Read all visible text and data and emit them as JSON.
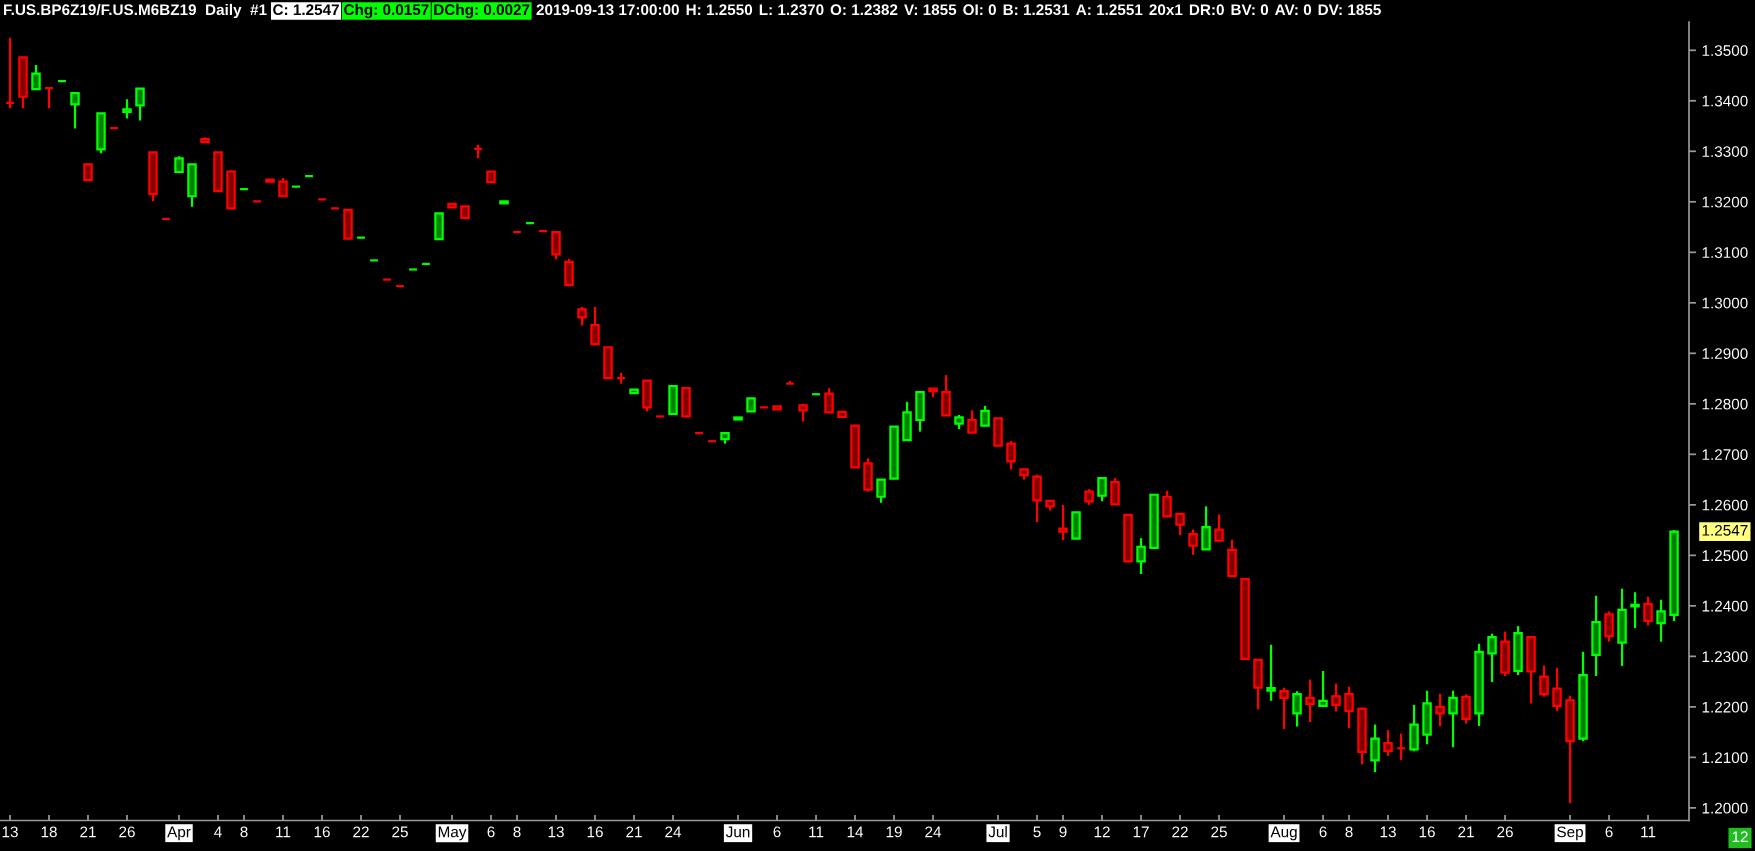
{
  "chart_data": {
    "type": "candlestick",
    "title": "F.US.BP6Z19/F.US.M6BZ19  Daily  #1",
    "annotations": [
      "C: 1.2547",
      "Chg: 0.0157",
      "DChg: 0.0027",
      "2019-09-13 17:00:00",
      "H: 1.2550",
      "L: 1.2370",
      "O: 1.2382",
      "V: 1855",
      "OI: 0",
      "B: 1.2531",
      "A: 1.2551",
      "20x1",
      "DR:0",
      "BV: 0",
      "AV: 0",
      "DV: 1855",
      "1.2547",
      "12"
    ],
    "categories": [
      "13",
      null,
      null,
      "18",
      null,
      null,
      "21",
      null,
      null,
      "26",
      null,
      null,
      null,
      "Apr",
      null,
      null,
      "4",
      null,
      "8",
      null,
      null,
      "11",
      null,
      null,
      "16",
      null,
      null,
      "22",
      null,
      null,
      "25",
      null,
      null,
      null,
      "May",
      null,
      null,
      "6",
      null,
      "8",
      null,
      null,
      "13",
      null,
      null,
      "16",
      null,
      null,
      "21",
      null,
      null,
      "24",
      null,
      null,
      null,
      null,
      "Jun",
      null,
      null,
      "6",
      null,
      null,
      "11",
      null,
      null,
      "14",
      null,
      null,
      "19",
      null,
      null,
      "24",
      null,
      null,
      null,
      null,
      "Jul",
      null,
      null,
      "5",
      null,
      "9",
      null,
      null,
      "12",
      null,
      null,
      "17",
      null,
      null,
      "22",
      null,
      null,
      "25",
      null,
      null,
      null,
      null,
      "Aug",
      null,
      null,
      "6",
      null,
      "8",
      null,
      null,
      "13",
      null,
      null,
      "16",
      null,
      null,
      "21",
      null,
      null,
      "26",
      null,
      null,
      null,
      null,
      "Sep",
      null,
      null,
      "6",
      null,
      null,
      "11",
      null,
      null
    ],
    "ohlc": [
      [
        1.3396,
        1.3525,
        1.3385,
        1.3396
      ],
      [
        1.3486,
        1.3486,
        1.3385,
        1.3408
      ],
      [
        1.3423,
        1.3471,
        1.3423,
        1.3454
      ],
      [
        1.3425,
        1.3425,
        1.3385,
        1.3425
      ],
      [
        1.3439,
        1.3439,
        1.3439,
        1.3439
      ],
      [
        1.3393,
        1.3415,
        1.3345,
        1.3415
      ],
      [
        1.3274,
        1.3274,
        1.3243,
        1.3243
      ],
      [
        1.3304,
        1.3375,
        1.3296,
        1.3375
      ],
      [
        1.3346,
        1.3346,
        1.3346,
        1.3346
      ],
      [
        1.3378,
        1.3403,
        1.3365,
        1.3383
      ],
      [
        1.3391,
        1.3424,
        1.3361,
        1.3424
      ],
      [
        1.3298,
        1.3298,
        1.3201,
        1.3215
      ],
      [
        1.3166,
        1.3166,
        1.3166,
        1.3166
      ],
      [
        1.3259,
        1.329,
        1.3259,
        1.3286
      ],
      [
        1.3211,
        1.3274,
        1.319,
        1.3274
      ],
      [
        1.3324,
        1.3328,
        1.3318,
        1.3318
      ],
      [
        1.3298,
        1.3298,
        1.3221,
        1.3221
      ],
      [
        1.326,
        1.3262,
        1.3187,
        1.3187
      ],
      [
        1.3225,
        1.3225,
        1.3225,
        1.3225
      ],
      [
        1.3201,
        1.3201,
        1.3201,
        1.3201
      ],
      [
        1.3244,
        1.3244,
        1.324,
        1.324
      ],
      [
        1.324,
        1.3247,
        1.3211,
        1.3211
      ],
      [
        1.323,
        1.323,
        1.323,
        1.323
      ],
      [
        1.3251,
        1.3251,
        1.3251,
        1.3251
      ],
      [
        1.3205,
        1.3205,
        1.3205,
        1.3205
      ],
      [
        1.3187,
        1.3187,
        1.3187,
        1.3187
      ],
      [
        1.3184,
        1.3184,
        1.3127,
        1.3127
      ],
      [
        1.3129,
        1.3129,
        1.3129,
        1.3129
      ],
      [
        1.3084,
        1.3084,
        1.3084,
        1.3084
      ],
      [
        1.3046,
        1.3046,
        1.3046,
        1.3046
      ],
      [
        1.3033,
        1.3033,
        1.3033,
        1.3033
      ],
      [
        1.3066,
        1.3066,
        1.3066,
        1.3066
      ],
      [
        1.3077,
        1.3077,
        1.3077,
        1.3077
      ],
      [
        1.3126,
        1.3177,
        1.3126,
        1.3177
      ],
      [
        1.3196,
        1.3196,
        1.3189,
        1.3189
      ],
      [
        1.3191,
        1.3191,
        1.3168,
        1.3168
      ],
      [
        1.3305,
        1.3313,
        1.3286,
        1.3305
      ],
      [
        1.326,
        1.326,
        1.3239,
        1.3239
      ],
      [
        1.3197,
        1.3201,
        1.3197,
        1.3201
      ],
      [
        1.314,
        1.314,
        1.314,
        1.314
      ],
      [
        1.3158,
        1.3158,
        1.3158,
        1.3158
      ],
      [
        1.3142,
        1.3142,
        1.3142,
        1.3142
      ],
      [
        1.314,
        1.314,
        1.3086,
        1.3096
      ],
      [
        1.3081,
        1.3087,
        1.3035,
        1.3035
      ],
      [
        1.2987,
        1.2992,
        1.2955,
        1.2971
      ],
      [
        1.2956,
        1.2992,
        1.2918,
        1.2918
      ],
      [
        1.2912,
        1.2912,
        1.2851,
        1.2851
      ],
      [
        1.2851,
        1.2861,
        1.284,
        1.2851
      ],
      [
        1.2821,
        1.2828,
        1.2821,
        1.2828
      ],
      [
        1.2846,
        1.2846,
        1.2785,
        1.2793
      ],
      [
        1.2775,
        1.2775,
        1.2775,
        1.2775
      ],
      [
        1.278,
        1.2835,
        1.278,
        1.2835
      ],
      [
        1.2831,
        1.2832,
        1.2775,
        1.2775
      ],
      [
        1.2742,
        1.2742,
        1.2742,
        1.2742
      ],
      [
        1.2726,
        1.2726,
        1.2726,
        1.2726
      ],
      [
        1.273,
        1.2742,
        1.2721,
        1.2742
      ],
      [
        1.2769,
        1.2773,
        1.2769,
        1.2773
      ],
      [
        1.2785,
        1.2811,
        1.2785,
        1.2811
      ],
      [
        1.2793,
        1.2793,
        1.2793,
        1.2793
      ],
      [
        1.2795,
        1.2795,
        1.2789,
        1.2789
      ],
      [
        1.284,
        1.2845,
        1.284,
        1.284
      ],
      [
        1.2797,
        1.28,
        1.2765,
        1.2787
      ],
      [
        1.2819,
        1.282,
        1.2819,
        1.2819
      ],
      [
        1.282,
        1.2831,
        1.2783,
        1.2783
      ],
      [
        1.2784,
        1.2784,
        1.2774,
        1.2774
      ],
      [
        1.2757,
        1.2757,
        1.2674,
        1.2674
      ],
      [
        1.2682,
        1.2692,
        1.2626,
        1.263
      ],
      [
        1.2616,
        1.265,
        1.2604,
        1.265
      ],
      [
        1.2652,
        1.2755,
        1.2652,
        1.2755
      ],
      [
        1.2728,
        1.2804,
        1.2728,
        1.2783
      ],
      [
        1.2768,
        1.2823,
        1.2745,
        1.2823
      ],
      [
        1.283,
        1.283,
        1.2813,
        1.2825
      ],
      [
        1.2823,
        1.2857,
        1.2777,
        1.2777
      ],
      [
        1.2761,
        1.2778,
        1.275,
        1.2773
      ],
      [
        1.2768,
        1.2787,
        1.2743,
        1.2743
      ],
      [
        1.2757,
        1.2796,
        1.2757,
        1.2786
      ],
      [
        1.2771,
        1.2771,
        1.2717,
        1.2717
      ],
      [
        1.2721,
        1.2726,
        1.267,
        1.2686
      ],
      [
        1.267,
        1.267,
        1.265,
        1.2659
      ],
      [
        1.2656,
        1.266,
        1.2566,
        1.2609
      ],
      [
        1.2608,
        1.2608,
        1.2589,
        1.2597
      ],
      [
        1.2553,
        1.26,
        1.253,
        1.2547
      ],
      [
        1.2533,
        1.2585,
        1.2533,
        1.2585
      ],
      [
        1.2626,
        1.2631,
        1.26,
        1.2607
      ],
      [
        1.2618,
        1.2653,
        1.2607,
        1.2653
      ],
      [
        1.2645,
        1.2653,
        1.2601,
        1.2601
      ],
      [
        1.258,
        1.258,
        1.2488,
        1.2488
      ],
      [
        1.2488,
        1.2534,
        1.2463,
        1.2517
      ],
      [
        1.2515,
        1.262,
        1.2515,
        1.262
      ],
      [
        1.2616,
        1.2628,
        1.2577,
        1.2577
      ],
      [
        1.2582,
        1.2582,
        1.254,
        1.2561
      ],
      [
        1.2542,
        1.2551,
        1.2501,
        1.2519
      ],
      [
        1.2512,
        1.2597,
        1.2512,
        1.2556
      ],
      [
        1.2551,
        1.2581,
        1.2529,
        1.2529
      ],
      [
        1.2511,
        1.2531,
        1.2459,
        1.2459
      ],
      [
        1.2453,
        1.2453,
        1.2293,
        1.2295
      ],
      [
        1.2293,
        1.2293,
        1.2195,
        1.2238
      ],
      [
        1.2232,
        1.2323,
        1.2212,
        1.2237
      ],
      [
        1.2231,
        1.2238,
        1.2156,
        1.2218
      ],
      [
        1.2187,
        1.2231,
        1.2161,
        1.2225
      ],
      [
        1.2218,
        1.2254,
        1.217,
        1.2206
      ],
      [
        1.2202,
        1.2271,
        1.2202,
        1.2212
      ],
      [
        1.2221,
        1.2246,
        1.2191,
        1.2204
      ],
      [
        1.2225,
        1.224,
        1.2158,
        1.2192
      ],
      [
        1.2196,
        1.2199,
        1.2086,
        1.2111
      ],
      [
        1.2094,
        1.2165,
        1.2071,
        1.2137
      ],
      [
        1.2128,
        1.2154,
        1.2103,
        1.2113
      ],
      [
        1.2118,
        1.2147,
        1.2095,
        1.2118
      ],
      [
        1.2116,
        1.2204,
        1.2112,
        1.2165
      ],
      [
        1.2145,
        1.2232,
        1.2126,
        1.2207
      ],
      [
        1.22,
        1.2226,
        1.2162,
        1.2187
      ],
      [
        1.2187,
        1.2232,
        1.212,
        1.2218
      ],
      [
        1.222,
        1.2225,
        1.2167,
        1.2176
      ],
      [
        1.2187,
        1.2325,
        1.2162,
        1.2309
      ],
      [
        1.2306,
        1.2345,
        1.2249,
        1.2338
      ],
      [
        1.2329,
        1.2349,
        1.2261,
        1.2268
      ],
      [
        1.2271,
        1.236,
        1.2263,
        1.2346
      ],
      [
        1.2338,
        1.2338,
        1.2207,
        1.227
      ],
      [
        1.226,
        1.2282,
        1.222,
        1.2225
      ],
      [
        1.2236,
        1.2277,
        1.2192,
        1.2202
      ],
      [
        1.2213,
        1.2222,
        1.2009,
        1.2132
      ],
      [
        1.2137,
        1.2309,
        1.2132,
        1.2263
      ],
      [
        1.2303,
        1.242,
        1.2261,
        1.2368
      ],
      [
        1.2383,
        1.2389,
        1.2329,
        1.234
      ],
      [
        1.2327,
        1.2434,
        1.2281,
        1.2392
      ],
      [
        1.2399,
        1.2427,
        1.2356,
        1.2402
      ],
      [
        1.2404,
        1.2418,
        1.2361,
        1.237
      ],
      [
        1.2366,
        1.2412,
        1.2329,
        1.2389
      ],
      [
        1.2382,
        1.255,
        1.237,
        1.2547
      ]
    ],
    "colors": [
      "#ff0000",
      "#ff0000",
      "#00ff00",
      "#ff0000",
      "#00ff00",
      "#00ff00",
      "#ff0000",
      "#00ff00",
      "#ff0000",
      "#00ff00",
      "#00ff00",
      "#ff0000",
      "#ff0000",
      "#00ff00",
      "#00ff00",
      "#ff0000",
      "#ff0000",
      "#ff0000",
      "#00ff00",
      "#ff0000",
      "#ff0000",
      "#ff0000",
      "#00ff00",
      "#00ff00",
      "#ff0000",
      "#ff0000",
      "#ff0000",
      "#00ff00",
      "#00ff00",
      "#ff0000",
      "#ff0000",
      "#00ff00",
      "#00ff00",
      "#00ff00",
      "#ff0000",
      "#ff0000",
      "#ff0000",
      "#ff0000",
      "#00ff00",
      "#ff0000",
      "#00ff00",
      "#ff0000",
      "#ff0000",
      "#ff0000",
      "#ff0000",
      "#ff0000",
      "#ff0000",
      "#ff0000",
      "#00ff00",
      "#ff0000",
      "#ff0000",
      "#00ff00",
      "#ff0000",
      "#ff0000",
      "#ff0000",
      "#00ff00",
      "#00ff00",
      "#00ff00",
      "#ff0000",
      "#ff0000",
      "#ff0000",
      "#ff0000",
      "#00ff00",
      "#ff0000",
      "#ff0000",
      "#ff0000",
      "#ff0000",
      "#00ff00",
      "#00ff00",
      "#00ff00",
      "#00ff00",
      "#ff0000",
      "#ff0000",
      "#00ff00",
      "#ff0000",
      "#00ff00",
      "#ff0000",
      "#ff0000",
      "#ff0000",
      "#ff0000",
      "#ff0000",
      "#ff0000",
      "#00ff00",
      "#ff0000",
      "#00ff00",
      "#ff0000",
      "#ff0000",
      "#00ff00",
      "#00ff00",
      "#ff0000",
      "#ff0000",
      "#ff0000",
      "#00ff00",
      "#ff0000",
      "#ff0000",
      "#ff0000",
      "#ff0000",
      "#00ff00",
      "#ff0000",
      "#00ff00",
      "#ff0000",
      "#00ff00",
      "#ff0000",
      "#ff0000",
      "#ff0000",
      "#00ff00",
      "#ff0000",
      "#ff0000",
      "#00ff00",
      "#00ff00",
      "#ff0000",
      "#00ff00",
      "#ff0000",
      "#00ff00",
      "#00ff00",
      "#ff0000",
      "#00ff00",
      "#ff0000",
      "#ff0000",
      "#ff0000",
      "#ff0000",
      "#00ff00",
      "#00ff00",
      "#ff0000",
      "#00ff00",
      "#00ff00",
      "#ff0000",
      "#00ff00",
      "#00ff00"
    ],
    "ylim": [
      1.1975,
      1.3556
    ],
    "yticks": [
      {
        "value": 1.2,
        "label": "1.2000"
      },
      {
        "value": 1.21,
        "label": "1.2100"
      },
      {
        "value": 1.22,
        "label": "1.2200"
      },
      {
        "value": 1.23,
        "label": "1.2300"
      },
      {
        "value": 1.24,
        "label": "1.2400"
      },
      {
        "value": 1.25,
        "label": "1.2500"
      },
      {
        "value": 1.26,
        "label": "1.2600"
      },
      {
        "value": 1.27,
        "label": "1.2700"
      },
      {
        "value": 1.28,
        "label": "1.2800"
      },
      {
        "value": 1.29,
        "label": "1.2900"
      },
      {
        "value": 1.3,
        "label": "1.3000"
      },
      {
        "value": 1.31,
        "label": "1.3100"
      },
      {
        "value": 1.32,
        "label": "1.3200"
      },
      {
        "value": 1.33,
        "label": "1.3300"
      },
      {
        "value": 1.34,
        "label": "1.3400"
      },
      {
        "value": 1.35,
        "label": "1.3500"
      }
    ]
  }
}
